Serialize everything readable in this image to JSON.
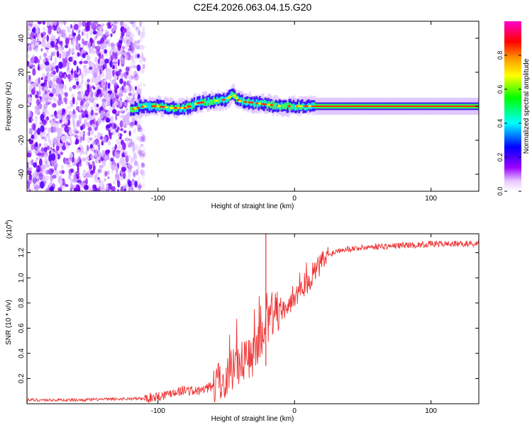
{
  "figure": {
    "title": "C2E4.2026.063.04.15.G20"
  },
  "chart_data": [
    {
      "type": "heatmap",
      "title": "C2E4.2026.063.04.15.G20",
      "xlabel": "Height of straight line (km)",
      "ylabel": "Frequency (Hz)",
      "xlim": [
        -196,
        135
      ],
      "ylim": [
        -50,
        50
      ],
      "xticks": [
        -100,
        0,
        100
      ],
      "xtick_labels": [
        "-100",
        "0",
        "100"
      ],
      "yticks": [
        -40,
        -20,
        0,
        20,
        40
      ],
      "ytick_labels": [
        "-40",
        "-20",
        "0",
        "20",
        "40"
      ],
      "colorbar": {
        "label": "Normalized spectral amplitude",
        "range": [
          0,
          1
        ],
        "ticks": [
          0.0,
          0.2,
          0.4,
          0.6,
          0.8
        ],
        "tick_labels": [
          "0.0",
          "0.2",
          "0.4",
          "0.6",
          "0.8"
        ],
        "colormap": [
          "#ffffff",
          "#e8c8ff",
          "#9a00ff",
          "#0000ff",
          "#00ffff",
          "#00ff00",
          "#ffff00",
          "#ff9900",
          "#ff0000",
          "#ff00cc"
        ]
      },
      "ridge": {
        "x": [
          -120,
          -110,
          -100,
          -90,
          -80,
          -70,
          -60,
          -50,
          -45,
          -40,
          -30,
          -20,
          -10,
          0,
          10,
          20,
          40,
          60,
          80,
          100,
          120,
          135
        ],
        "y": [
          -2,
          0,
          0,
          -1,
          -1,
          2,
          3,
          4,
          7,
          3,
          2,
          1,
          0,
          0,
          0,
          0,
          0,
          0,
          0,
          0,
          0,
          0
        ]
      },
      "noise_region_x": [
        -196,
        -110
      ]
    },
    {
      "type": "line",
      "title": "",
      "xlabel": "Height of straight line (km)",
      "ylabel": "SNR (10 * v/v)",
      "y_multiplier_label": "(x10",
      "y_multiplier_exp": "4",
      "y_multiplier_close": ")",
      "xlim": [
        -196,
        135
      ],
      "ylim": [
        0.0,
        1.35
      ],
      "xticks": [
        -100,
        0,
        100
      ],
      "xtick_labels": [
        "-100",
        "0",
        "100"
      ],
      "yticks": [
        0.2,
        0.4,
        0.6,
        0.8,
        1.0,
        1.2
      ],
      "ytick_labels": [
        "0.2",
        "0.4",
        "0.6",
        "0.8",
        "1.0",
        "1.2"
      ],
      "color": "#ee3333",
      "series": [
        {
          "name": "SNR",
          "x": [
            -196,
            -180,
            -160,
            -140,
            -120,
            -110,
            -100,
            -95,
            -90,
            -85,
            -80,
            -75,
            -70,
            -65,
            -60,
            -55,
            -50,
            -45,
            -40,
            -35,
            -30,
            -25,
            -20,
            -15,
            -10,
            -5,
            0,
            5,
            10,
            15,
            20,
            25,
            30,
            35,
            40,
            50,
            60,
            70,
            80,
            90,
            100,
            110,
            120,
            135
          ],
          "values": [
            0.03,
            0.03,
            0.03,
            0.035,
            0.04,
            0.04,
            0.06,
            0.07,
            0.09,
            0.1,
            0.11,
            0.1,
            0.1,
            0.12,
            0.14,
            0.17,
            0.22,
            0.3,
            0.34,
            0.36,
            0.4,
            0.48,
            0.6,
            0.72,
            0.74,
            0.78,
            0.86,
            0.93,
            0.98,
            1.05,
            1.12,
            1.18,
            1.21,
            1.23,
            1.23,
            1.24,
            1.25,
            1.25,
            1.26,
            1.26,
            1.27,
            1.27,
            1.27,
            1.27
          ]
        }
      ],
      "spike": {
        "x": -21,
        "value": 1.35
      }
    }
  ]
}
